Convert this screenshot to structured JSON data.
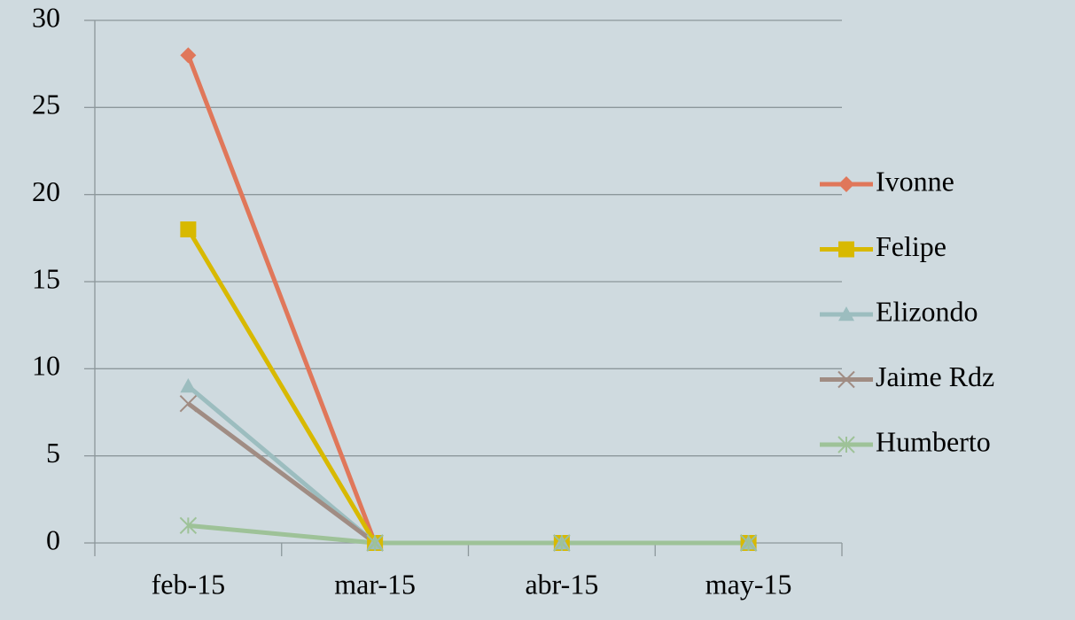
{
  "chart_data": {
    "type": "line",
    "categories": [
      "feb-15",
      "mar-15",
      "abr-15",
      "may-15"
    ],
    "series": [
      {
        "name": "Ivonne",
        "color": "#e0775a",
        "marker": "diamond",
        "values": [
          28,
          0,
          0,
          0
        ]
      },
      {
        "name": "Felipe",
        "color": "#d8b900",
        "marker": "square",
        "values": [
          18,
          0,
          0,
          0
        ]
      },
      {
        "name": "Elizondo",
        "color": "#9cbdbf",
        "marker": "triangle",
        "values": [
          9,
          0,
          0,
          0
        ]
      },
      {
        "name": "Jaime Rdz",
        "color": "#a08c83",
        "marker": "x",
        "values": [
          8,
          0,
          0,
          0
        ]
      },
      {
        "name": "Humberto",
        "color": "#9ec298",
        "marker": "star",
        "values": [
          1,
          0,
          0,
          0
        ]
      }
    ],
    "ylim": [
      0,
      30
    ],
    "yticks": [
      0,
      5,
      10,
      15,
      20,
      25,
      30
    ],
    "grid": true,
    "legend": "right"
  }
}
